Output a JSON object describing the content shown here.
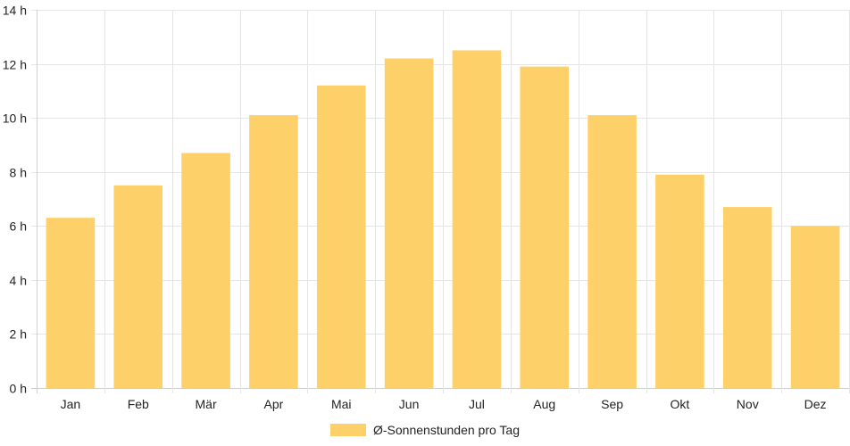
{
  "chart_data": {
    "type": "bar",
    "categories": [
      "Jan",
      "Feb",
      "Mär",
      "Apr",
      "Mai",
      "Jun",
      "Jul",
      "Aug",
      "Sep",
      "Okt",
      "Nov",
      "Dez"
    ],
    "series": [
      {
        "name": "Ø-Sonnenstunden pro Tag",
        "values": [
          6.3,
          7.5,
          8.7,
          10.1,
          11.2,
          12.2,
          12.5,
          11.9,
          10.1,
          7.9,
          6.7,
          6.0
        ]
      }
    ],
    "y_ticks": [
      0,
      2,
      4,
      6,
      8,
      10,
      12,
      14
    ],
    "y_unit_suffix": " h",
    "ylim": [
      0,
      14
    ],
    "grid": true,
    "legend_position": "bottom",
    "colors": {
      "bar": "#fdd069",
      "grid": "#e5e5e5",
      "axis": "#cfcfcf"
    }
  }
}
